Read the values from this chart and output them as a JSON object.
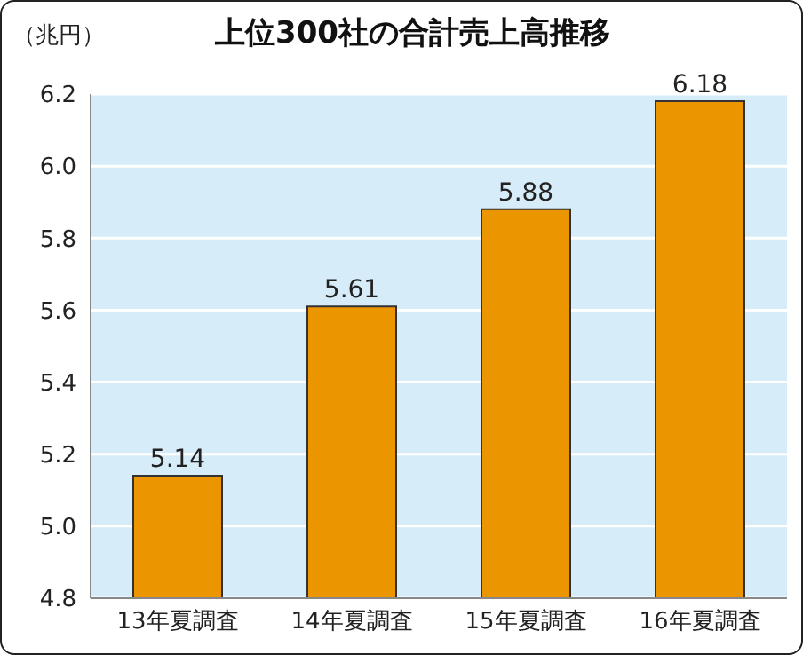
{
  "chart_data": {
    "type": "bar",
    "title": "上位300社の合計売上高推移",
    "ylabel": "（兆円）",
    "categories": [
      "13年夏調査",
      "14年夏調査",
      "15年夏調査",
      "16年夏調査"
    ],
    "values": [
      5.14,
      5.61,
      5.88,
      6.18
    ],
    "color": "#eb9500",
    "ylim": [
      4.8,
      6.2
    ],
    "yticks": [
      4.8,
      {
        "value": 5,
        "label": "5.0"
      },
      5.2,
      5.4,
      5.6,
      5.8,
      {
        "value": 6,
        "label": "6.0"
      },
      6.2
    ],
    "grid": "y",
    "data_labels": true
  }
}
